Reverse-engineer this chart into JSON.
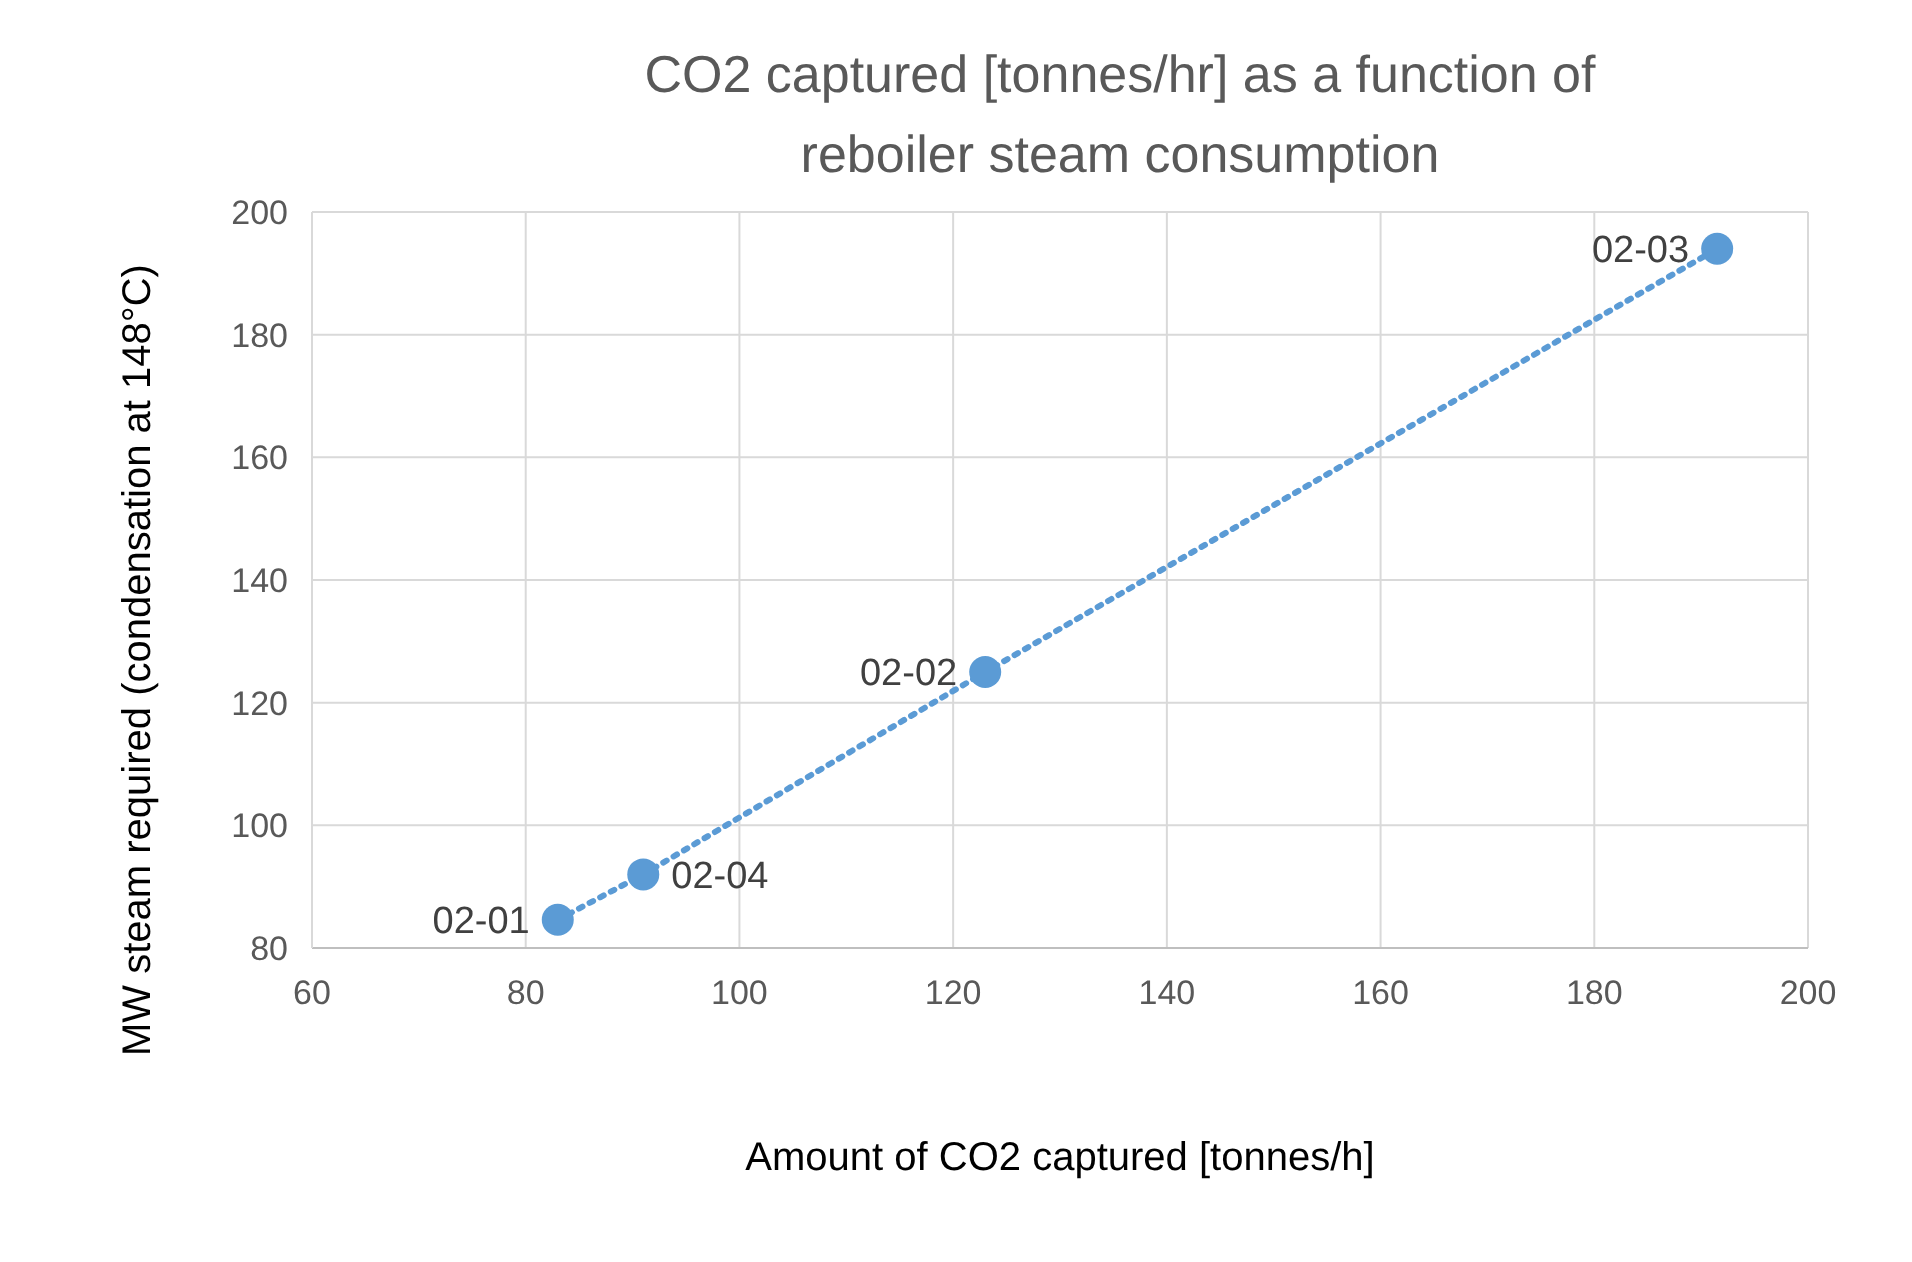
{
  "chart_data": {
    "type": "line",
    "title": "CO2 captured [tonnes/hr] as a function of reboiler steam consumption",
    "xlabel": "Amount of CO2 captured [tonnes/h]",
    "ylabel": "MW steam required (condensation at 148°C)",
    "series": [
      {
        "color": "#5b9bd5",
        "x": [
          83,
          91,
          123,
          191.5
        ],
        "values": [
          84.6,
          92,
          125,
          194
        ]
      }
    ],
    "marker": "circle",
    "line_style": "dotted",
    "xlim": [
      60,
      200
    ],
    "xticks": [
      60,
      80,
      100,
      120,
      140,
      160,
      180,
      200
    ],
    "ylim": [
      80,
      200
    ],
    "yticks": [
      80,
      100,
      120,
      140,
      160,
      180,
      200
    ],
    "grid": true,
    "annotations": [
      {
        "text": "02-01",
        "x": 83,
        "y": 84.6
      },
      {
        "text": "02-04",
        "x": 91,
        "y": 92
      },
      {
        "text": "02-02",
        "x": 123,
        "y": 125
      },
      {
        "text": "02-03",
        "x": 191.5,
        "y": 194
      }
    ]
  }
}
